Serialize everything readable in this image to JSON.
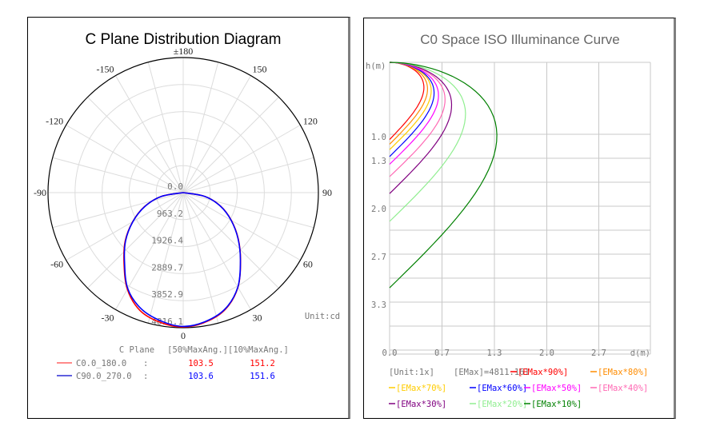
{
  "chart_data": [
    {
      "type": "line",
      "subtype": "polar",
      "title": "C Plane Distribution Diagram",
      "unit_label": "Unit:cd",
      "angle_labels": [
        {
          "angle": 180,
          "text": "±180"
        },
        {
          "angle": -150,
          "text": "-150"
        },
        {
          "angle": 150,
          "text": "150"
        },
        {
          "angle": -120,
          "text": "-120"
        },
        {
          "angle": 120,
          "text": "120"
        },
        {
          "angle": -90,
          "text": "-90"
        },
        {
          "angle": 90,
          "text": "90"
        },
        {
          "angle": -60,
          "text": "-60"
        },
        {
          "angle": 60,
          "text": "60"
        },
        {
          "angle": -30,
          "text": "-30"
        },
        {
          "angle": 30,
          "text": "30"
        },
        {
          "angle": 0,
          "text": "0"
        }
      ],
      "ring_labels": [
        "0.0",
        "963.2",
        "1926.4",
        "2889.7",
        "3852.9",
        "4816.1"
      ],
      "rmax": 4816.1,
      "spoke_step_deg": 15,
      "angles": [
        0,
        10,
        20,
        30,
        40,
        50,
        60,
        70,
        80,
        90
      ],
      "series": [
        {
          "name": "C0.0_180.0",
          "color": "#ff0000",
          "left": [
            4790,
            4700,
            4480,
            3980,
            3280,
            2700,
            2080,
            1470,
            800,
            0
          ],
          "right": [
            4790,
            4680,
            4420,
            3900,
            3180,
            2560,
            1980,
            1420,
            780,
            0
          ]
        },
        {
          "name": "C90.0_270.0",
          "color": "#0000ff",
          "left": [
            4770,
            4640,
            4400,
            3950,
            3250,
            2680,
            2070,
            1460,
            800,
            0
          ],
          "right": [
            4770,
            4660,
            4400,
            3890,
            3170,
            2550,
            1970,
            1410,
            780,
            0
          ]
        }
      ],
      "legend": {
        "header": [
          "C Plane",
          "[50%MaxAng.][10%MaxAng.]"
        ],
        "rows": [
          {
            "label": "C0.0_180.0",
            "sep": ":",
            "v50": "103.5",
            "v10": "151.2",
            "color": "#ff0000"
          },
          {
            "label": "C90.0_270.0",
            "sep": ":",
            "v50": "103.6",
            "v10": "151.6",
            "color": "#0000ff"
          }
        ]
      }
    },
    {
      "type": "line",
      "subtype": "iso-illuminance",
      "title": "C0 Space ISO Illuminance Curve",
      "xlabel": "d(m)",
      "ylabel": "h(m)",
      "x_ticks": [
        "0.0",
        "0.7",
        "1.3",
        "2.0",
        "2.7"
      ],
      "y_ticks": [
        "1.0",
        "1.3",
        "2.0",
        "2.7",
        "3.3"
      ],
      "xlim": [
        0,
        3.33
      ],
      "ylim": [
        0,
        3.73
      ],
      "unit": "[Unit:1x]",
      "emax": "[EMax]=4811.161",
      "series": [
        {
          "name": "[EMax*90%]",
          "color": "#ff0000",
          "max_d": 0.47,
          "depth": 1.0
        },
        {
          "name": "[EMax*80%]",
          "color": "#ff8c00",
          "max_d": 0.52,
          "depth": 1.06
        },
        {
          "name": "[EMax*70%]",
          "color": "#ffcc00",
          "max_d": 0.57,
          "depth": 1.13
        },
        {
          "name": "[EMax*60%]",
          "color": "#0000ff",
          "max_d": 0.61,
          "depth": 1.22
        },
        {
          "name": "[EMax*50%]",
          "color": "#ff00ff",
          "max_d": 0.67,
          "depth": 1.32
        },
        {
          "name": "[EMax*40%]",
          "color": "#ff69b4",
          "max_d": 0.76,
          "depth": 1.48
        },
        {
          "name": "[EMax*30%]",
          "color": "#800080",
          "max_d": 0.85,
          "depth": 1.7
        },
        {
          "name": "[EMax*20%]",
          "color": "#90ee90",
          "max_d": 1.04,
          "depth": 2.06
        },
        {
          "name": "[EMax*10%]",
          "color": "#008000",
          "max_d": 1.47,
          "depth": 2.92
        }
      ]
    }
  ]
}
